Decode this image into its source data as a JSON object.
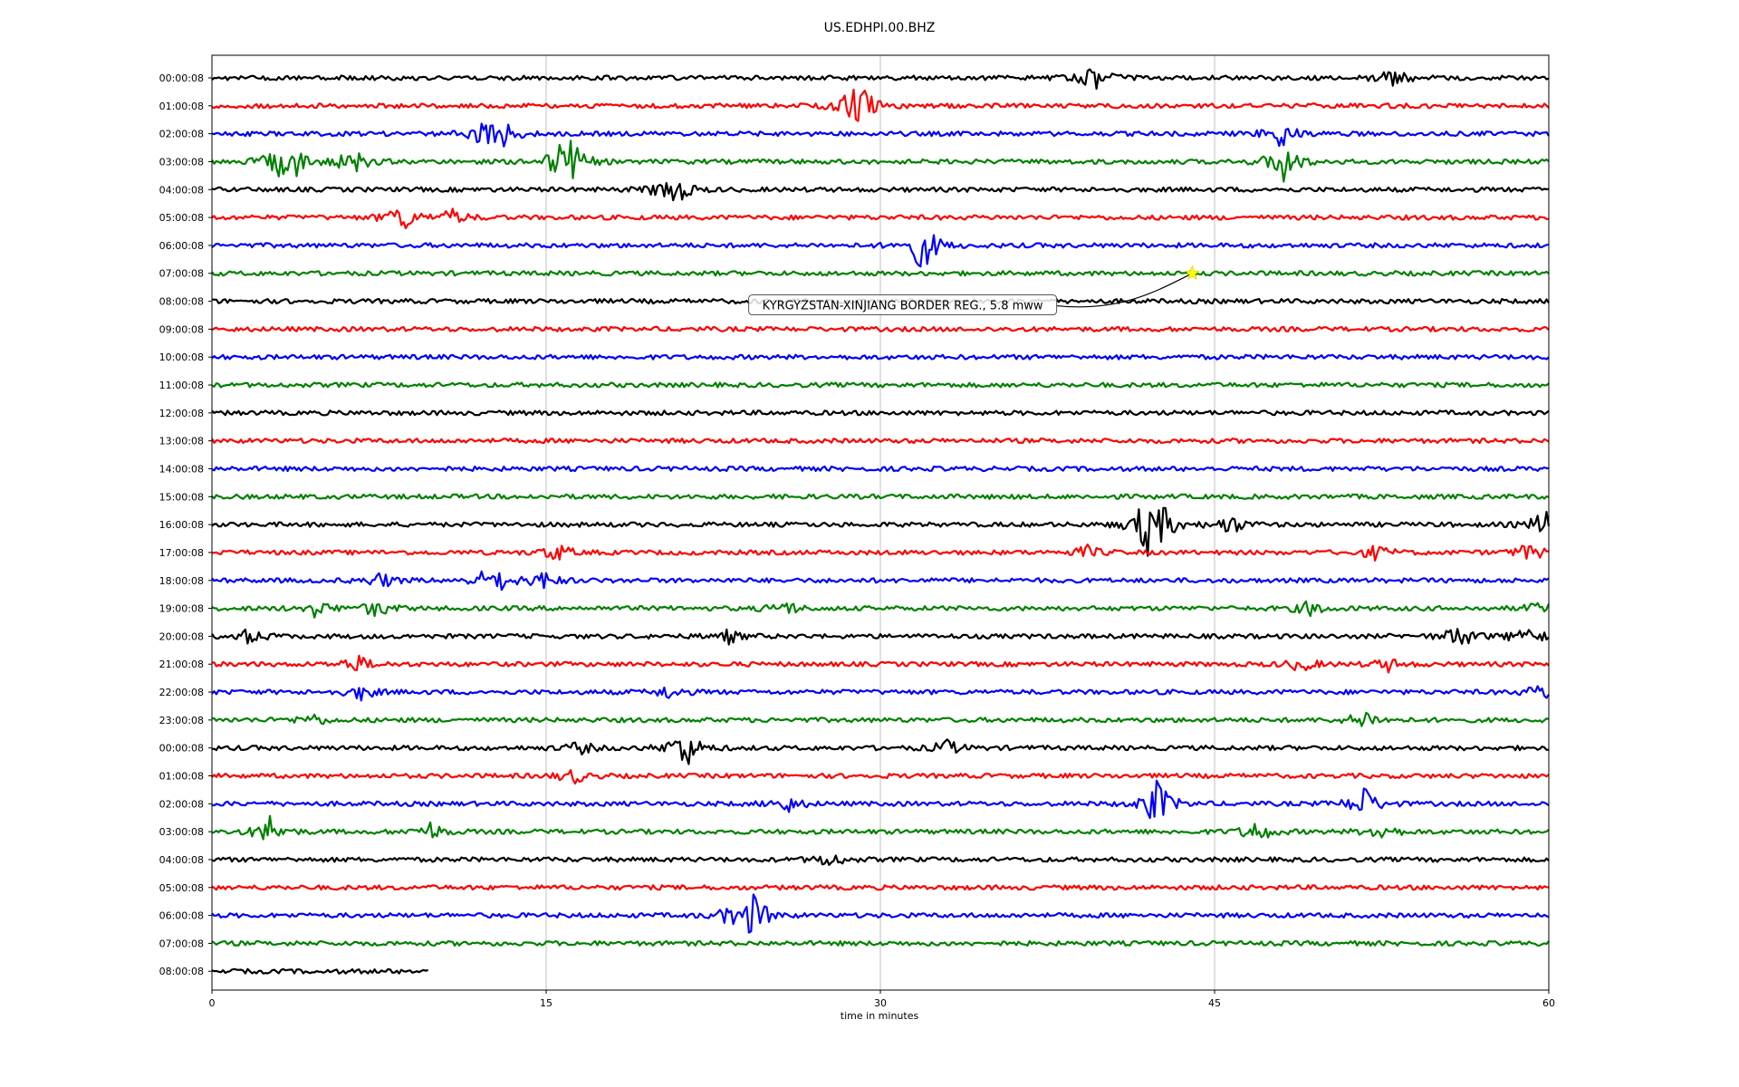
{
  "chart_data": {
    "type": "line",
    "title": "US.EDHPI.00.BHZ",
    "xlabel": "time in minutes",
    "ylabel": "",
    "xlim": [
      0,
      60
    ],
    "xticks": [
      {
        "value": 0,
        "label": "0"
      },
      {
        "value": 15,
        "label": "15"
      },
      {
        "value": 30,
        "label": "30"
      },
      {
        "value": 45,
        "label": "45"
      },
      {
        "value": 60,
        "label": "60"
      }
    ],
    "grid_x": true,
    "row_labels": [
      "00:00:08",
      "01:00:08",
      "02:00:08",
      "03:00:08",
      "04:00:08",
      "05:00:08",
      "06:00:08",
      "07:00:08",
      "08:00:08",
      "09:00:08",
      "10:00:08",
      "11:00:08",
      "12:00:08",
      "13:00:08",
      "14:00:08",
      "15:00:08",
      "16:00:08",
      "17:00:08",
      "18:00:08",
      "19:00:08",
      "20:00:08",
      "21:00:08",
      "22:00:08",
      "23:00:08",
      "00:00:08",
      "01:00:08",
      "02:00:08",
      "03:00:08",
      "04:00:08",
      "05:00:08",
      "06:00:08",
      "07:00:08",
      "08:00:08"
    ],
    "trace_colors": [
      "#000000",
      "#ff0000",
      "#0000ff",
      "#008000"
    ],
    "last_row_end_minute": 9.7,
    "events": [
      {
        "row": 0,
        "minute": 39.6,
        "amplitude": 0.5
      },
      {
        "row": 0,
        "minute": 53.0,
        "amplitude": 0.45
      },
      {
        "row": 1,
        "minute": 28.7,
        "amplitude": 0.55
      },
      {
        "row": 1,
        "minute": 29.3,
        "amplitude": 0.45
      },
      {
        "row": 2,
        "minute": 12.2,
        "amplitude": 0.45
      },
      {
        "row": 2,
        "minute": 13.0,
        "amplitude": 0.55
      },
      {
        "row": 2,
        "minute": 48.0,
        "amplitude": 0.6
      },
      {
        "row": 3,
        "minute": 2.9,
        "amplitude": 0.55
      },
      {
        "row": 3,
        "minute": 3.8,
        "amplitude": 0.45
      },
      {
        "row": 3,
        "minute": 6.3,
        "amplitude": 0.55
      },
      {
        "row": 3,
        "minute": 15.9,
        "amplitude": 1.4
      },
      {
        "row": 3,
        "minute": 48.1,
        "amplitude": 0.9
      },
      {
        "row": 4,
        "minute": 20.3,
        "amplitude": 0.35
      },
      {
        "row": 4,
        "minute": 20.9,
        "amplitude": 0.4
      },
      {
        "row": 5,
        "minute": 8.5,
        "amplitude": 0.6
      },
      {
        "row": 5,
        "minute": 10.8,
        "amplitude": 0.3
      },
      {
        "row": 6,
        "minute": 31.9,
        "amplitude": 1.1
      },
      {
        "row": 16,
        "minute": 42.0,
        "amplitude": 1.2
      },
      {
        "row": 16,
        "minute": 42.7,
        "amplitude": 0.45
      },
      {
        "row": 16,
        "minute": 45.7,
        "amplitude": 0.4
      },
      {
        "row": 16,
        "minute": 59.8,
        "amplitude": 0.55
      },
      {
        "row": 17,
        "minute": 15.5,
        "amplitude": 0.35
      },
      {
        "row": 17,
        "minute": 39.3,
        "amplitude": 0.25
      },
      {
        "row": 17,
        "minute": 52.3,
        "amplitude": 0.3
      },
      {
        "row": 17,
        "minute": 59.1,
        "amplitude": 0.35
      },
      {
        "row": 18,
        "minute": 7.6,
        "amplitude": 0.3
      },
      {
        "row": 18,
        "minute": 12.3,
        "amplitude": 0.35
      },
      {
        "row": 18,
        "minute": 12.9,
        "amplitude": 0.3
      },
      {
        "row": 18,
        "minute": 14.9,
        "amplitude": 0.35
      },
      {
        "row": 19,
        "minute": 4.7,
        "amplitude": 0.35
      },
      {
        "row": 19,
        "minute": 7.4,
        "amplitude": 0.35
      },
      {
        "row": 19,
        "minute": 25.7,
        "amplitude": 0.3
      },
      {
        "row": 19,
        "minute": 49.3,
        "amplitude": 0.3
      },
      {
        "row": 19,
        "minute": 59.6,
        "amplitude": 0.25
      },
      {
        "row": 20,
        "minute": 1.7,
        "amplitude": 0.3
      },
      {
        "row": 20,
        "minute": 23.2,
        "amplitude": 0.25
      },
      {
        "row": 20,
        "minute": 56.0,
        "amplitude": 0.5
      },
      {
        "row": 20,
        "minute": 59.0,
        "amplitude": 0.45
      },
      {
        "row": 21,
        "minute": 6.5,
        "amplitude": 0.35
      },
      {
        "row": 21,
        "minute": 48.9,
        "amplitude": 0.3
      },
      {
        "row": 21,
        "minute": 52.8,
        "amplitude": 0.25
      },
      {
        "row": 22,
        "minute": 6.7,
        "amplitude": 0.3
      },
      {
        "row": 22,
        "minute": 20.5,
        "amplitude": 0.25
      },
      {
        "row": 22,
        "minute": 59.7,
        "amplitude": 0.35
      },
      {
        "row": 23,
        "minute": 4.5,
        "amplitude": 0.25
      },
      {
        "row": 23,
        "minute": 51.7,
        "amplitude": 0.4
      },
      {
        "row": 24,
        "minute": 21.2,
        "amplitude": 0.9
      },
      {
        "row": 24,
        "minute": 16.5,
        "amplitude": 0.25
      },
      {
        "row": 24,
        "minute": 33.0,
        "amplitude": 0.3
      },
      {
        "row": 25,
        "minute": 16.2,
        "amplitude": 0.3
      },
      {
        "row": 26,
        "minute": 25.8,
        "amplitude": 0.35
      },
      {
        "row": 26,
        "minute": 42.4,
        "amplitude": 1.0
      },
      {
        "row": 26,
        "minute": 51.7,
        "amplitude": 0.7
      },
      {
        "row": 27,
        "minute": 2.6,
        "amplitude": 0.6
      },
      {
        "row": 27,
        "minute": 9.8,
        "amplitude": 0.35
      },
      {
        "row": 27,
        "minute": 46.9,
        "amplitude": 0.45
      },
      {
        "row": 27,
        "minute": 52.5,
        "amplitude": 0.35
      },
      {
        "row": 28,
        "minute": 27.7,
        "amplitude": 0.3
      },
      {
        "row": 30,
        "minute": 24.3,
        "amplitude": 0.9
      },
      {
        "row": 30,
        "minute": 23.3,
        "amplitude": 0.3
      }
    ],
    "annotation": {
      "text": "KYRGYZSTAN-XINJIANG BORDER REG., 5.8 mww",
      "event_row": 7,
      "event_minute": 44.0,
      "label_row": 8,
      "label_minute": 31.0,
      "star_color": "#ffff00"
    }
  }
}
